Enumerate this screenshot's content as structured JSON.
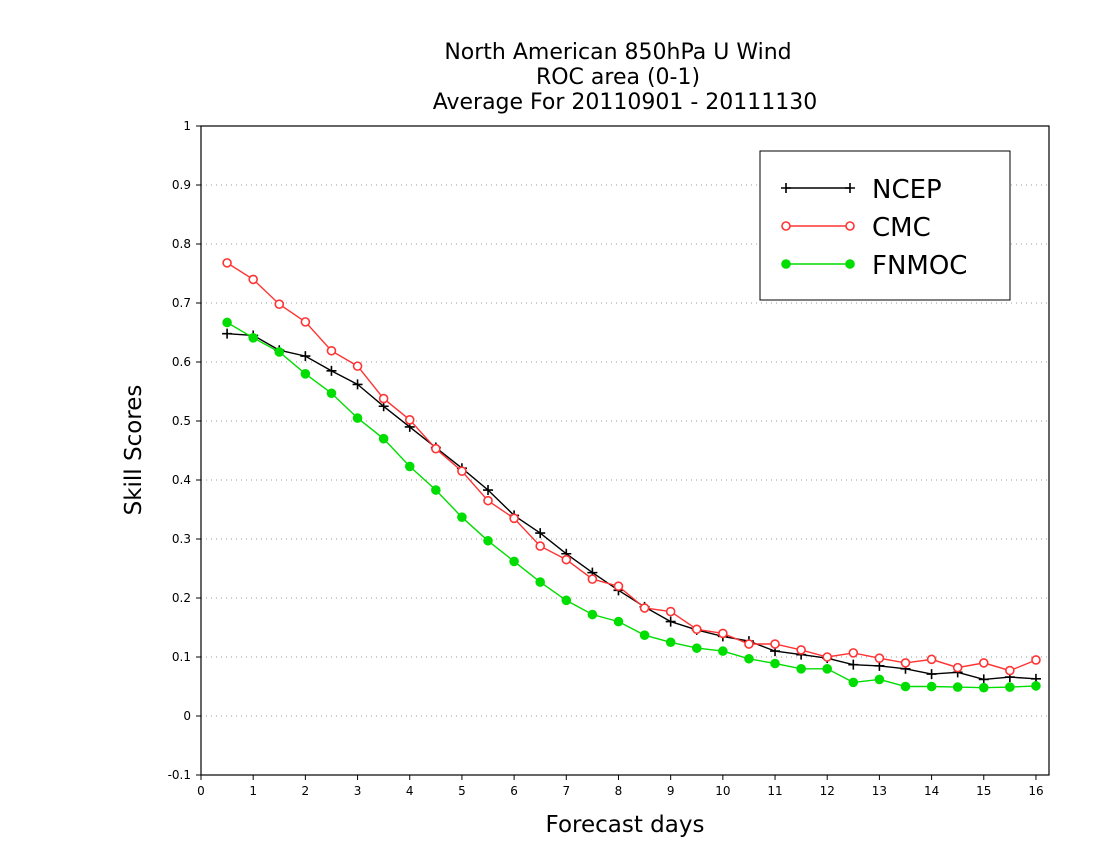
{
  "chart_data": {
    "type": "line",
    "title": [
      "North American 850hPa U Wind",
      "ROC area (0-1)",
      "Average For 20110901 - 20111130"
    ],
    "xlabel": "Forecast days",
    "ylabel": "Skill Scores",
    "xlim": [
      0,
      16.25
    ],
    "ylim": [
      -0.1,
      1
    ],
    "xticks": [
      0,
      1,
      2,
      3,
      4,
      5,
      6,
      7,
      8,
      9,
      10,
      11,
      12,
      13,
      14,
      15,
      16
    ],
    "xtick_labels": [
      "0",
      "1",
      "2",
      "3",
      "4",
      "5",
      "6",
      "7",
      "8",
      "9",
      "10",
      "11",
      "12",
      "13",
      "14",
      "15",
      "16"
    ],
    "yticks": [
      -0.1,
      0,
      0.1,
      0.2,
      0.3,
      0.4,
      0.5,
      0.6,
      0.7,
      0.8,
      0.9,
      1
    ],
    "ytick_labels": [
      "-0.1",
      "0",
      "0.1",
      "0.2",
      "0.3",
      "0.4",
      "0.5",
      "0.6",
      "0.7",
      "0.8",
      "0.9",
      "1"
    ],
    "grid": true,
    "legend_position": "top-right",
    "x": [
      0.5,
      1,
      1.5,
      2,
      2.5,
      3,
      3.5,
      4,
      4.5,
      5,
      5.5,
      6,
      6.5,
      7,
      7.5,
      8,
      8.5,
      9,
      9.5,
      10,
      10.5,
      11,
      11.5,
      12,
      12.5,
      13,
      13.5,
      14,
      14.5,
      15,
      15.5,
      16
    ],
    "series": [
      {
        "name": "NCEP",
        "color": "#000000",
        "marker": "plus",
        "values": [
          0.648,
          0.645,
          0.62,
          0.61,
          0.585,
          0.562,
          0.525,
          0.49,
          0.455,
          0.42,
          0.383,
          0.34,
          0.31,
          0.275,
          0.243,
          0.213,
          0.185,
          0.16,
          0.146,
          0.135,
          0.127,
          0.11,
          0.104,
          0.098,
          0.087,
          0.085,
          0.08,
          0.071,
          0.074,
          0.062,
          0.066,
          0.063
        ]
      },
      {
        "name": "CMC",
        "color": "#ff3333",
        "marker": "open-circle",
        "values": [
          0.768,
          0.74,
          0.698,
          0.668,
          0.619,
          0.593,
          0.538,
          0.502,
          0.453,
          0.415,
          0.365,
          0.335,
          0.288,
          0.265,
          0.232,
          0.22,
          0.183,
          0.177,
          0.147,
          0.14,
          0.122,
          0.122,
          0.112,
          0.1,
          0.107,
          0.098,
          0.09,
          0.096,
          0.082,
          0.09,
          0.077,
          0.095
        ]
      },
      {
        "name": "FNMOC",
        "color": "#00dd00",
        "marker": "filled-circle",
        "values": [
          0.667,
          0.641,
          0.617,
          0.58,
          0.547,
          0.505,
          0.47,
          0.423,
          0.383,
          0.337,
          0.297,
          0.262,
          0.227,
          0.196,
          0.172,
          0.16,
          0.137,
          0.125,
          0.115,
          0.11,
          0.097,
          0.089,
          0.08,
          0.08,
          0.057,
          0.062,
          0.05,
          0.05,
          0.049,
          0.048,
          0.049,
          0.051
        ]
      }
    ]
  }
}
